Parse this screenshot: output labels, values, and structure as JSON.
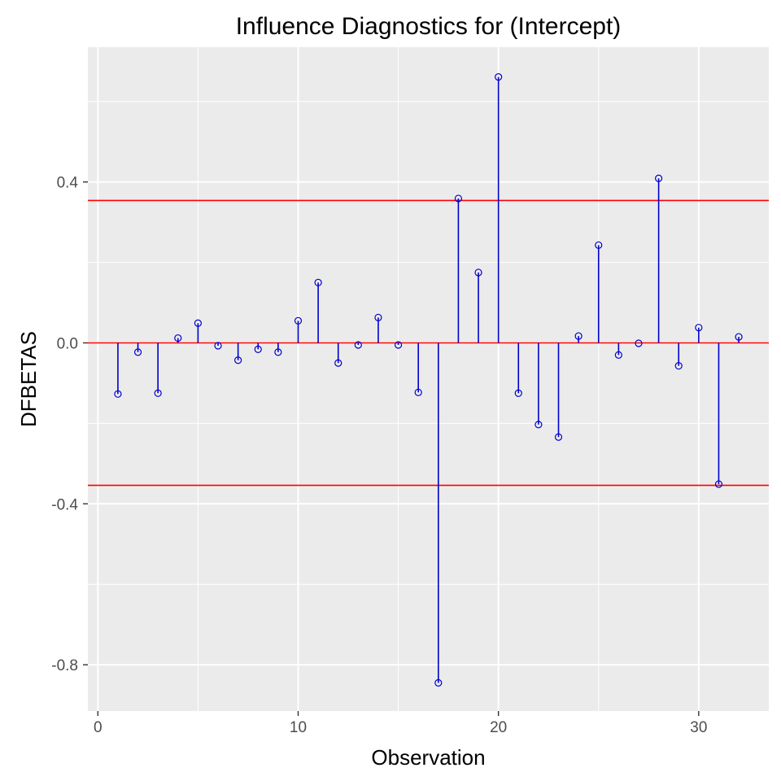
{
  "chart_data": {
    "type": "stem",
    "title": "Influence Diagnostics for (Intercept)",
    "xlabel": "Observation",
    "ylabel": "DFBETAS",
    "xlim": [
      -0.5,
      33.5
    ],
    "ylim": [
      -0.915,
      0.735
    ],
    "xticks": [
      0,
      10,
      20,
      30
    ],
    "xtick_labels": [
      "0",
      "10",
      "20",
      "30"
    ],
    "yticks": [
      -0.8,
      -0.4,
      0.0,
      0.4
    ],
    "ytick_labels": [
      "-0.8",
      "-0.4",
      "0.0",
      "0.4"
    ],
    "grid": true,
    "threshold": 0.354,
    "reference_lines": [
      0.354,
      0.0,
      -0.354
    ],
    "x": [
      1,
      2,
      3,
      4,
      5,
      6,
      7,
      8,
      9,
      10,
      11,
      12,
      13,
      14,
      15,
      16,
      17,
      18,
      19,
      20,
      21,
      22,
      23,
      24,
      25,
      26,
      27,
      28,
      29,
      30,
      31,
      32
    ],
    "values": [
      -0.127,
      -0.023,
      -0.125,
      0.012,
      0.049,
      -0.007,
      -0.043,
      -0.016,
      -0.023,
      0.055,
      0.15,
      -0.05,
      -0.005,
      0.063,
      -0.005,
      -0.123,
      -0.845,
      0.359,
      0.175,
      0.661,
      -0.125,
      -0.203,
      -0.234,
      0.017,
      0.243,
      -0.03,
      -0.001,
      0.409,
      -0.057,
      0.038,
      -0.351,
      0.015
    ],
    "colors": {
      "panel": "#ebebeb",
      "grid": "#ffffff",
      "stems": "#0000cd",
      "reference_lines": "#ff0000",
      "background": "#ffffff"
    }
  }
}
